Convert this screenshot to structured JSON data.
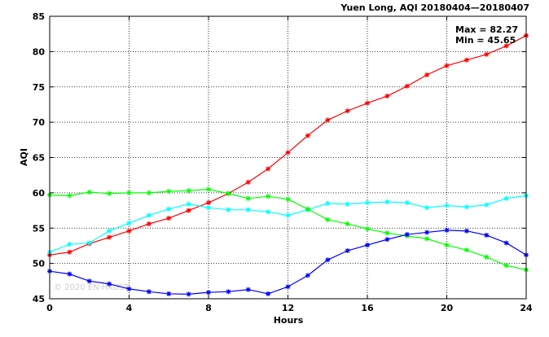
{
  "chart_data": {
    "type": "line",
    "title": "Yuen Long, AQI 20180404—20180407",
    "xlabel": "Hours",
    "ylabel": "AQI",
    "xlim": [
      0,
      24
    ],
    "ylim": [
      45,
      85
    ],
    "xticks": [
      0,
      4,
      8,
      12,
      16,
      20,
      24
    ],
    "yticks": [
      45,
      50,
      55,
      60,
      65,
      70,
      75,
      80,
      85
    ],
    "grid": true,
    "stats": [
      "Max = 82.27",
      "Min = 45.65"
    ],
    "watermark": "© 2020 EN·HKUST",
    "x": [
      0,
      1,
      2,
      3,
      4,
      5,
      6,
      7,
      8,
      9,
      10,
      11,
      12,
      13,
      14,
      15,
      16,
      17,
      18,
      19,
      20,
      21,
      22,
      23,
      24
    ],
    "series": [
      {
        "color": "#ff0000",
        "values": [
          51.2,
          51.6,
          52.8,
          53.7,
          54.6,
          55.6,
          56.4,
          57.5,
          58.6,
          59.9,
          61.5,
          63.4,
          65.7,
          68.1,
          70.3,
          71.6,
          72.7,
          73.7,
          75.1,
          76.7,
          78.0,
          78.8,
          79.6,
          80.8,
          82.27
        ]
      },
      {
        "color": "#00ffff",
        "values": [
          51.6,
          52.7,
          52.9,
          54.6,
          55.7,
          56.8,
          57.7,
          58.4,
          57.9,
          57.6,
          57.6,
          57.3,
          56.8,
          57.6,
          58.5,
          58.4,
          58.6,
          58.7,
          58.6,
          57.9,
          58.2,
          58.0,
          58.3,
          59.2,
          59.6
        ]
      },
      {
        "color": "#00ff00",
        "values": [
          59.7,
          59.6,
          60.1,
          59.9,
          60.0,
          60.0,
          60.2,
          60.3,
          60.5,
          59.9,
          59.2,
          59.5,
          59.1,
          57.7,
          56.2,
          55.6,
          54.9,
          54.3,
          53.9,
          53.5,
          52.6,
          51.9,
          50.9,
          49.7,
          49.1
        ]
      },
      {
        "color": "#0000ff",
        "values": [
          48.9,
          48.5,
          47.5,
          47.1,
          46.4,
          46.0,
          45.7,
          45.65,
          45.9,
          46.0,
          46.3,
          45.7,
          46.7,
          48.3,
          50.5,
          51.8,
          52.6,
          53.4,
          54.1,
          54.4,
          54.7,
          54.6,
          54.0,
          52.9,
          51.2
        ]
      }
    ]
  }
}
